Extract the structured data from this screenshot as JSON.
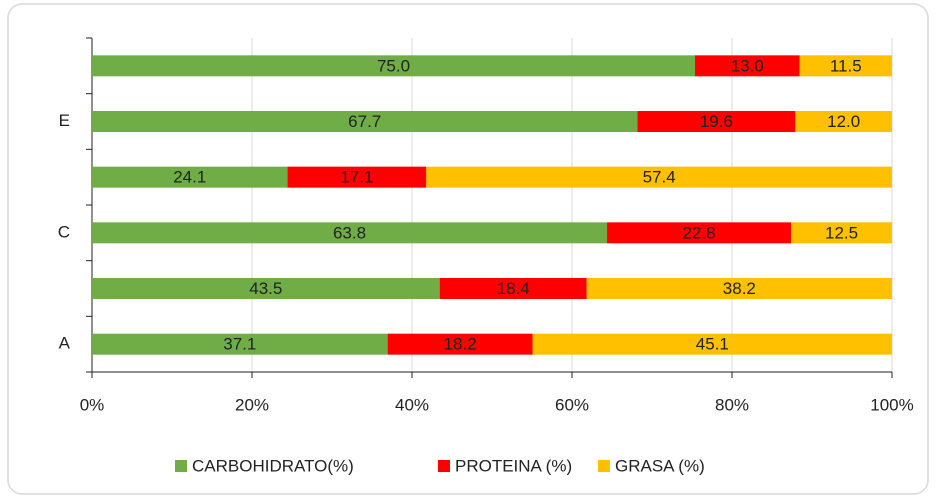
{
  "chart_data": {
    "type": "bar",
    "orientation": "horizontal",
    "stacking": "percent",
    "categories": [
      "A",
      null,
      "C",
      null,
      "E",
      null
    ],
    "series": [
      {
        "name": "CARBOHIDRATO(%)",
        "color": "#70ad47",
        "values": [
          37.1,
          43.5,
          63.8,
          24.1,
          67.7,
          75.0
        ],
        "value_labels": [
          "37.1",
          "43.5",
          "63.8",
          "24.1",
          "67.7",
          "75.0"
        ]
      },
      {
        "name": "PROTEINA (%)",
        "color": "#ff0000",
        "values": [
          18.2,
          18.4,
          22.8,
          17.1,
          19.6,
          13.0
        ],
        "value_labels": [
          "18.2",
          "18.4",
          "22.8",
          "17.1",
          "19.6",
          "13.0"
        ]
      },
      {
        "name": "GRASA (%)",
        "color": "#ffc000",
        "values": [
          45.1,
          38.2,
          12.5,
          57.4,
          12.0,
          11.5
        ],
        "value_labels": [
          "45.1",
          "38.2",
          "12.5",
          "57.4",
          "12.0",
          "11.5"
        ]
      }
    ],
    "xlim": [
      0,
      100
    ],
    "xticks": [
      {
        "value": 0,
        "label": "0%"
      },
      {
        "value": 20,
        "label": "20%"
      },
      {
        "value": 40,
        "label": "40%"
      },
      {
        "value": 60,
        "label": "60%"
      },
      {
        "value": 80,
        "label": "80%"
      },
      {
        "value": 100,
        "label": "100%"
      }
    ],
    "grid": true,
    "legend": "bottom"
  }
}
